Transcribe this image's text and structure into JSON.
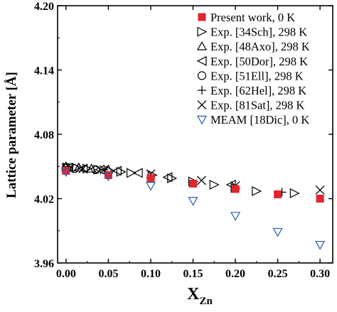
{
  "chart_data": {
    "type": "scatter",
    "title": "",
    "xlabel": "X",
    "xlabel_sub": "Zn",
    "ylabel": "Lattice parameter [Å]",
    "xlim": [
      -0.01,
      0.315
    ],
    "ylim": [
      3.96,
      4.2
    ],
    "xticks": [
      "0.00",
      "0.05",
      "0.10",
      "0.15",
      "0.20",
      "0.25",
      "0.30"
    ],
    "xtick_values": [
      0.0,
      0.05,
      0.1,
      0.15,
      0.2,
      0.25,
      0.3
    ],
    "yticks": [
      "3.96",
      "4.02",
      "4.08",
      "4.14",
      "4.20"
    ],
    "ytick_values": [
      3.96,
      4.02,
      4.08,
      4.14,
      4.2
    ],
    "grid": false,
    "legend_position": "top-right",
    "series": [
      {
        "name": "Present work, 0 K",
        "marker": "square-filled",
        "color": "#e0262e",
        "points": [
          [
            0.0,
            4.046
          ],
          [
            0.05,
            4.042
          ],
          [
            0.1,
            4.039
          ],
          [
            0.15,
            4.034
          ],
          [
            0.2,
            4.029
          ],
          [
            0.25,
            4.024
          ],
          [
            0.3,
            4.02
          ]
        ]
      },
      {
        "name": "Exp. [34Sch], 298 K",
        "marker": "triangle-right",
        "color": "#000000",
        "points": [
          [
            0.002,
            4.049
          ],
          [
            0.012,
            4.049
          ],
          [
            0.025,
            4.048
          ],
          [
            0.038,
            4.047
          ],
          [
            0.052,
            4.046
          ],
          [
            0.065,
            4.045
          ],
          [
            0.077,
            4.044
          ],
          [
            0.102,
            4.042
          ],
          [
            0.125,
            4.039
          ],
          [
            0.15,
            4.036
          ],
          [
            0.175,
            4.033
          ],
          [
            0.2,
            4.03
          ],
          [
            0.225,
            4.027
          ],
          [
            0.27,
            4.025
          ]
        ]
      },
      {
        "name": "Exp. [48Axo], 298 K",
        "marker": "triangle-up",
        "color": "#000000",
        "points": [
          [
            0.0,
            4.05
          ],
          [
            0.015,
            4.049
          ],
          [
            0.03,
            4.048
          ],
          [
            0.05,
            4.047
          ]
        ]
      },
      {
        "name": "Exp. [50Dor], 298 K",
        "marker": "triangle-left",
        "color": "#000000",
        "points": [
          [
            0.003,
            4.049
          ],
          [
            0.02,
            4.048
          ],
          [
            0.04,
            4.047
          ],
          [
            0.06,
            4.046
          ],
          [
            0.085,
            4.044
          ],
          [
            0.12,
            4.04
          ],
          [
            0.195,
            4.033
          ]
        ]
      },
      {
        "name": "Exp. [51Ell], 298 K",
        "marker": "circle",
        "color": "#000000",
        "points": [
          [
            0.0,
            4.049
          ],
          [
            0.01,
            4.048
          ],
          [
            0.035,
            4.047
          ]
        ]
      },
      {
        "name": "Exp. [62Hel], 298 K",
        "marker": "plus",
        "color": "#000000",
        "points": [
          [
            0.003,
            4.049
          ],
          [
            0.045,
            4.047
          ],
          [
            0.255,
            4.026
          ]
        ]
      },
      {
        "name": "Exp. [81Sat], 298 K",
        "marker": "x",
        "color": "#000000",
        "points": [
          [
            0.0,
            4.049
          ],
          [
            0.02,
            4.048
          ],
          [
            0.045,
            4.047
          ],
          [
            0.1,
            4.043
          ],
          [
            0.16,
            4.037
          ],
          [
            0.2,
            4.032
          ],
          [
            0.3,
            4.028
          ]
        ]
      },
      {
        "name": "MEAM [18Dic], 0 K",
        "marker": "triangle-down",
        "color": "#2a5db0",
        "points": [
          [
            0.0,
            4.045
          ],
          [
            0.05,
            4.041
          ],
          [
            0.1,
            4.032
          ],
          [
            0.15,
            4.018
          ],
          [
            0.2,
            4.004
          ],
          [
            0.25,
            3.989
          ],
          [
            0.3,
            3.977
          ]
        ]
      }
    ]
  }
}
